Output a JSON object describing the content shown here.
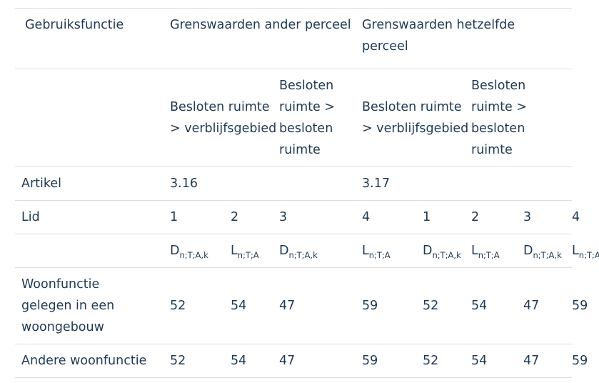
{
  "table": {
    "header": {
      "col0": "Gebruiksfunctie",
      "group1": "Grenswaarden ander perceel",
      "group2": "Grenswaarden hetzelfde perceel"
    },
    "subheader": {
      "g1a": "Besloten ruimte > verblijfsgebied",
      "g1b": "Besloten ruimte > besloten ruimte",
      "g2a": "Besloten ruimte > verblijfsgebied",
      "g2b": "Besloten ruimte > besloten ruimte"
    },
    "artikel": {
      "label": "Artikel",
      "g1": "3.16",
      "g2": "3.17"
    },
    "lid": {
      "label": "Lid",
      "values": [
        "1",
        "2",
        "3",
        "4",
        "1",
        "2",
        "3",
        "4"
      ]
    },
    "symbols": [
      {
        "base": "D",
        "sub": "n;T;A,k"
      },
      {
        "base": "L",
        "sub": "n;T;A"
      },
      {
        "base": "D",
        "sub": "n;T;A,k"
      },
      {
        "base": "L",
        "sub": "n;T;A"
      },
      {
        "base": "D",
        "sub": "n;T;A,k"
      },
      {
        "base": "L",
        "sub": "n;T;A"
      },
      {
        "base": "D",
        "sub": "n;T;A,k"
      },
      {
        "base": "L",
        "sub": "n;T;A"
      }
    ],
    "rows": [
      {
        "label": "Woonfunctie gelegen in een woongebouw",
        "values": [
          "52",
          "54",
          "47",
          "59",
          "52",
          "54",
          "47",
          "59"
        ]
      },
      {
        "label": "Andere woonfunctie",
        "values": [
          "52",
          "54",
          "47",
          "59",
          "52",
          "54",
          "47",
          "59"
        ]
      }
    ]
  }
}
